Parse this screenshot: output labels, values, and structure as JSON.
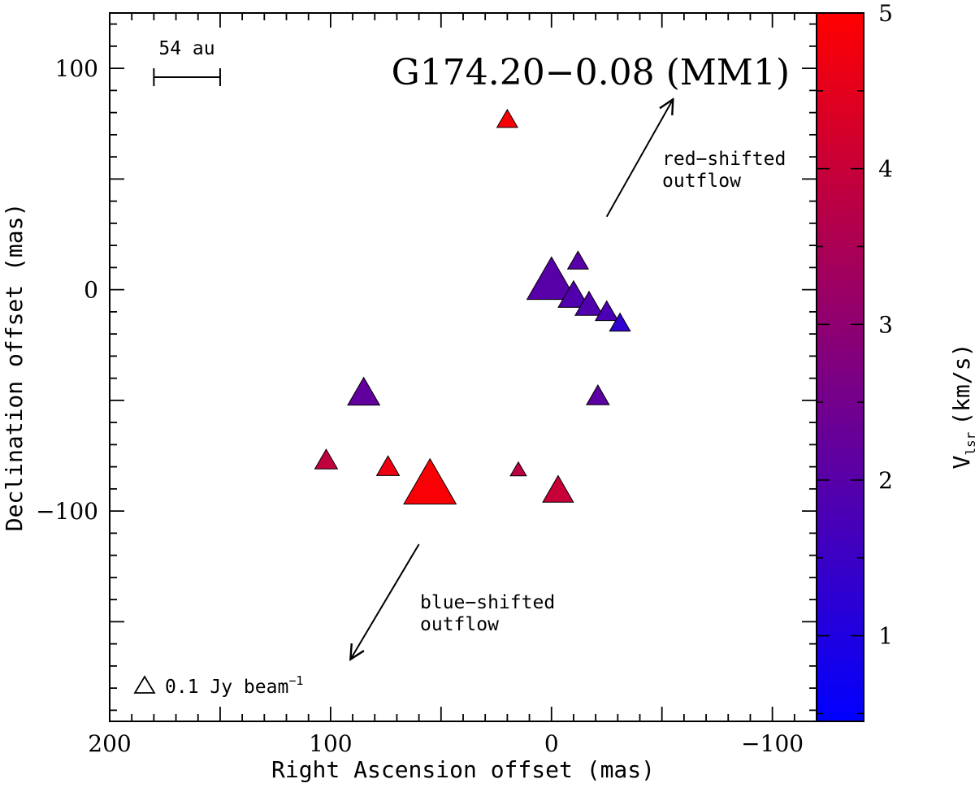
{
  "chart_data": {
    "type": "scatter",
    "title": "G174.20−0.08 (MM1)",
    "xlabel": "Right Ascension offset (mas)",
    "ylabel": "Declination offset (mas)",
    "xlim": [
      200,
      -120
    ],
    "ylim": [
      -195,
      125
    ],
    "x_ticks": [
      200,
      100,
      0,
      -100
    ],
    "x_tick_labels": [
      "200",
      "100",
      "0",
      "−100"
    ],
    "y_ticks": [
      100,
      0,
      -100
    ],
    "y_tick_labels": [
      "100",
      "0",
      "−100"
    ],
    "marker": "triangle",
    "size_unit": "Jy beam⁻¹",
    "points": [
      {
        "x": 20,
        "y": 76,
        "vlsr": 4.9,
        "flux": 0.05
      },
      {
        "x": -12,
        "y": 12,
        "vlsr": 2.0,
        "flux": 0.05
      },
      {
        "x": 0,
        "y": 2,
        "vlsr": 2.0,
        "flux": 0.28
      },
      {
        "x": -10,
        "y": -4,
        "vlsr": 1.9,
        "flux": 0.11
      },
      {
        "x": -17,
        "y": -8,
        "vlsr": 1.9,
        "flux": 0.09
      },
      {
        "x": -25,
        "y": -11,
        "vlsr": 1.8,
        "flux": 0.06
      },
      {
        "x": -31,
        "y": -16,
        "vlsr": 1.3,
        "flux": 0.05
      },
      {
        "x": 85,
        "y": -48,
        "vlsr": 2.2,
        "flux": 0.12
      },
      {
        "x": -21,
        "y": -49,
        "vlsr": 2.1,
        "flux": 0.06
      },
      {
        "x": 102,
        "y": -78,
        "vlsr": 3.9,
        "flux": 0.06
      },
      {
        "x": 74,
        "y": -81,
        "vlsr": 4.7,
        "flux": 0.06
      },
      {
        "x": 15,
        "y": -82,
        "vlsr": 3.8,
        "flux": 0.03
      },
      {
        "x": 55,
        "y": -90,
        "vlsr": 4.9,
        "flux": 0.32
      },
      {
        "x": -3,
        "y": -92,
        "vlsr": 4.0,
        "flux": 0.11
      }
    ],
    "colorbar": {
      "label_main": "V",
      "label_sub": "lsr",
      "label_unit": "(km/s)",
      "range": [
        0.45,
        5
      ],
      "ticks": [
        1,
        2,
        3,
        4,
        5
      ],
      "tick_labels": [
        "1",
        "2",
        "3",
        "4",
        "5"
      ],
      "color_low": "#0000ff",
      "color_high": "#ff0000"
    },
    "scale_bar": {
      "label": "54 au",
      "x_from": 180,
      "x_to": 150,
      "y": 96
    },
    "legend": {
      "label": "0.1 Jy beam",
      "sup": "−1",
      "flux": 0.1,
      "placement": "bottom-left"
    },
    "annotations": [
      {
        "id": "red",
        "line1": "red−shifted",
        "line2": "outflow",
        "arrow_from": [
          -25,
          33
        ],
        "arrow_to": [
          -55,
          86
        ],
        "text_at": [
          -50,
          58
        ]
      },
      {
        "id": "blue",
        "line1": "blue−shifted",
        "line2": "outflow",
        "arrow_from": [
          60,
          -115
        ],
        "arrow_to": [
          91,
          -167
        ],
        "text_at": [
          60,
          -141
        ]
      }
    ]
  }
}
